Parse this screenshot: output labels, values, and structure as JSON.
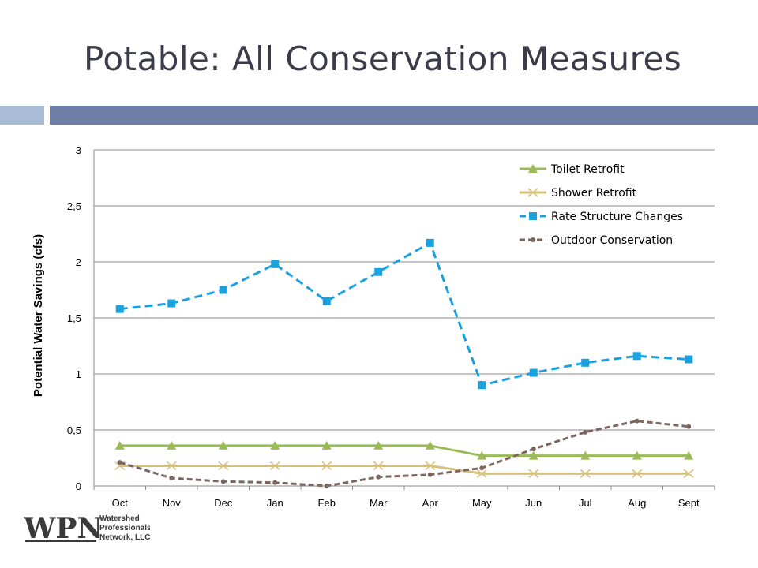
{
  "slide": {
    "title": "Potable: All Conservation Measures"
  },
  "logo": {
    "mark": "WPN",
    "line1": "Watershed",
    "line2": "Professionals",
    "line3": "Network, LLC"
  },
  "chart_data": {
    "type": "line",
    "title": "",
    "xlabel": "",
    "ylabel": "Potential Water Savings (cfs)",
    "categories": [
      "Oct",
      "Nov",
      "Dec",
      "Jan",
      "Feb",
      "Mar",
      "Apr",
      "May",
      "Jun",
      "Jul",
      "Aug",
      "Sept"
    ],
    "ylim": [
      0,
      3
    ],
    "yticks": [
      0,
      0.5,
      1,
      1.5,
      2,
      2.5,
      3
    ],
    "ytick_labels": [
      "0",
      "0,5",
      "1",
      "1,5",
      "2",
      "2,5",
      "3"
    ],
    "grid": true,
    "legend_position": "top-right",
    "series": [
      {
        "name": "Toilet Retrofit",
        "color": "#9bbb59",
        "line_style": "solid",
        "marker": "triangle",
        "values": [
          0.36,
          0.36,
          0.36,
          0.36,
          0.36,
          0.36,
          0.36,
          0.27,
          0.27,
          0.27,
          0.27,
          0.27
        ]
      },
      {
        "name": "Shower Retrofit",
        "color": "#d6c07a",
        "line_style": "solid",
        "marker": "x",
        "values": [
          0.18,
          0.18,
          0.18,
          0.18,
          0.18,
          0.18,
          0.18,
          0.11,
          0.11,
          0.11,
          0.11,
          0.11
        ]
      },
      {
        "name": "Rate Structure Changes",
        "color": "#1aa1e0",
        "line_style": "dashed",
        "marker": "square",
        "values": [
          1.58,
          1.63,
          1.75,
          1.98,
          1.65,
          1.91,
          2.17,
          0.9,
          1.01,
          1.1,
          1.16,
          1.13
        ]
      },
      {
        "name": "Outdoor Conservation",
        "color": "#7e6660",
        "line_style": "dashed",
        "marker": "circle",
        "values": [
          0.21,
          0.07,
          0.04,
          0.03,
          0.0,
          0.08,
          0.1,
          0.16,
          0.33,
          0.48,
          0.58,
          0.53
        ]
      }
    ]
  }
}
